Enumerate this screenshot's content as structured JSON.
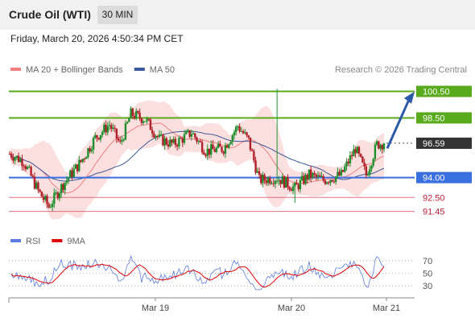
{
  "header": {
    "instrument": "Crude Oil (WTI)",
    "timeframe": "30 MIN",
    "datetime": "Friday, March 20, 2026 4:50:34 PM CET"
  },
  "chart_data": [
    {
      "type": "candlestick",
      "panel": "price",
      "legend": [
        {
          "label": "MA 20 + Bollinger Bands",
          "color": "#f08080"
        },
        {
          "label": "MA 50",
          "color": "#3c5a99"
        }
      ],
      "credit": "Research © 2026 Trading Central",
      "x_ticks": [
        "Mar 19",
        "Mar 20",
        "Mar 21"
      ],
      "ylim": [
        91.0,
        101.2
      ],
      "levels": [
        {
          "value": 100.5,
          "label": "100.50",
          "kind": "resistance"
        },
        {
          "value": 98.5,
          "label": "98.50",
          "kind": "resistance"
        },
        {
          "value": 96.59,
          "label": "96.59",
          "kind": "last"
        },
        {
          "value": 94.0,
          "label": "94.00",
          "kind": "pivot"
        },
        {
          "value": 92.5,
          "label": "92.50",
          "kind": "support"
        },
        {
          "value": 91.45,
          "label": "91.45",
          "kind": "support"
        }
      ],
      "last_price": 96.59,
      "forecast_arrow": {
        "from": 96.2,
        "to": 100.3,
        "direction": "up"
      }
    },
    {
      "type": "line",
      "panel": "rsi",
      "legend": [
        {
          "label": "RSI",
          "color": "#5c7ce0"
        },
        {
          "label": "9MA",
          "color": "#e00000"
        }
      ],
      "ylim": [
        20,
        80
      ],
      "y_ticks": [
        70,
        50,
        30
      ]
    }
  ],
  "colors": {
    "up": "#1e8f2e",
    "down": "#b0202a",
    "resistance": "#5aaa1e",
    "pivot": "#3a6fe0",
    "support": "#e07080",
    "last": "#333333",
    "band": "#fcd9d9"
  }
}
